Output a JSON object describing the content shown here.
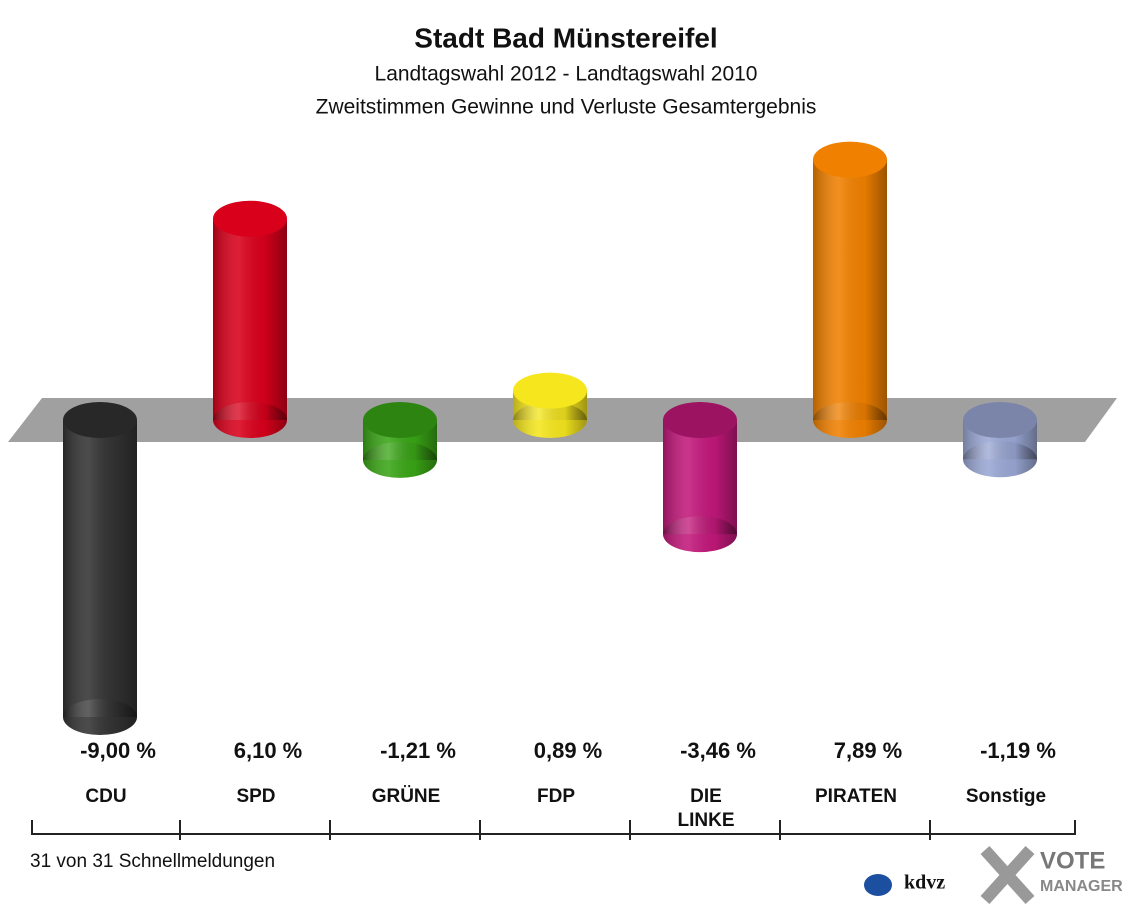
{
  "chart_data": {
    "type": "bar",
    "title": "Stadt Bad Münstereifel",
    "subtitle": [
      "Landtagswahl 2012 - Landtagswahl 2010",
      "Zweitstimmen Gewinne und Verluste Gesamtergebnis"
    ],
    "categories": [
      "CDU",
      "SPD",
      "GRÜNE",
      "FDP",
      "DIE LINKE",
      "PIRATEN",
      "Sonstige"
    ],
    "values": [
      -9.0,
      6.1,
      -1.21,
      0.89,
      -3.46,
      7.89,
      -1.19
    ],
    "value_labels": [
      "-9,00 %",
      "6,10 %",
      "-1,21 %",
      "0,89 %",
      "-3,46 %",
      "7,89 %",
      "-1,19 %"
    ],
    "colors": [
      "#333333",
      "#d9001b",
      "#3aa516",
      "#f5e61e",
      "#c2187a",
      "#f08000",
      "#9aa7d4"
    ],
    "footnote": "31 von 31 Schnellmeldungen",
    "logo": [
      "kdvz",
      "VOTE",
      "MANAGER"
    ]
  }
}
